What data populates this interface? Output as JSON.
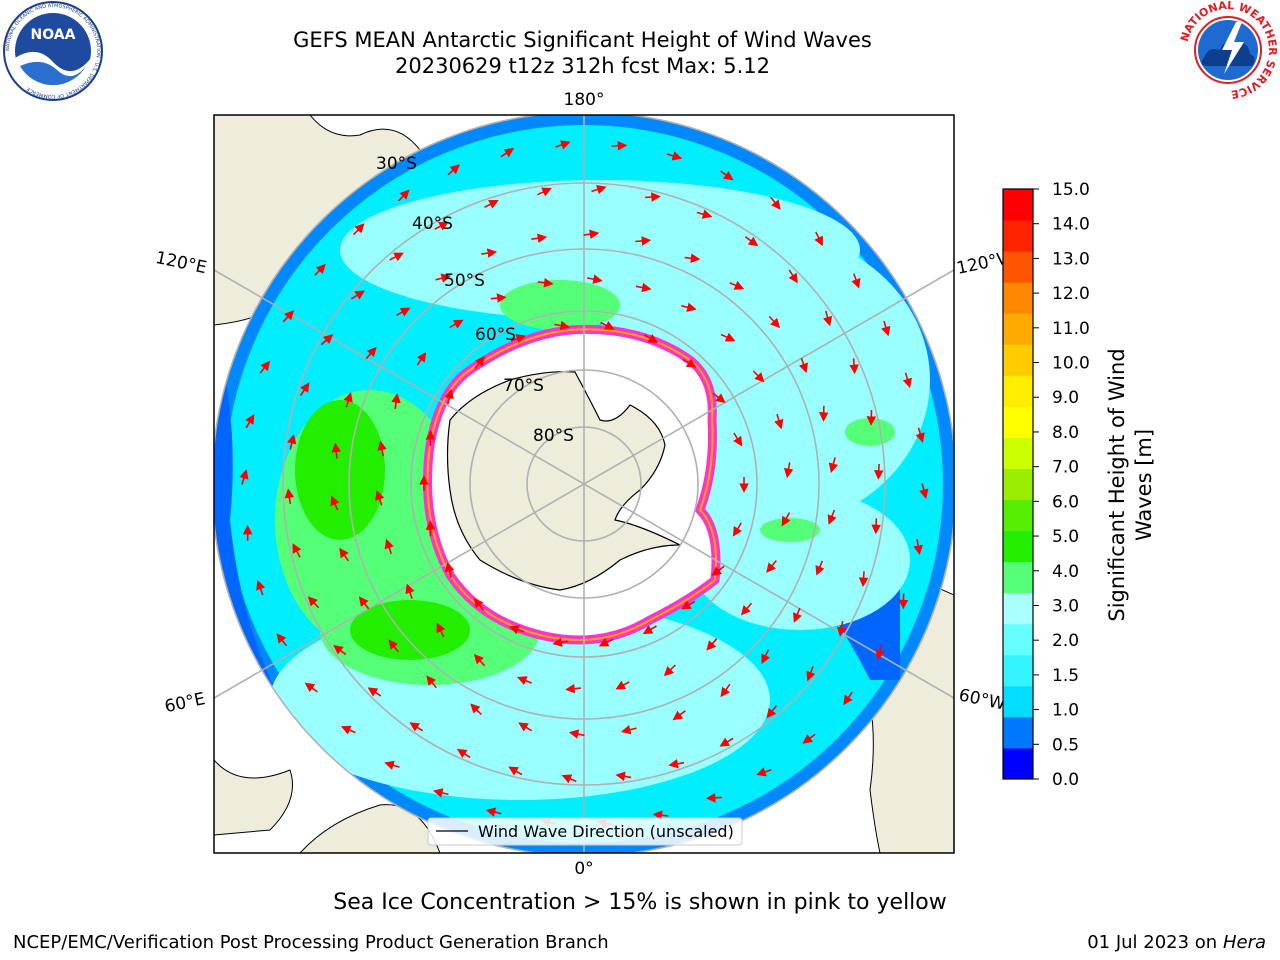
{
  "header": {
    "title_line1": "GEFS MEAN Antarctic Significant Height of Wind Waves",
    "title_line2": "20230629 t12z 312h fcst   Max: 5.12"
  },
  "logos": {
    "noaa_text": "NOAA",
    "noaa_ring_text": "NATIONAL OCEANIC AND ATMOSPHERIC ADMINISTRATION · U.S. DEPARTMENT OF COMMERCE",
    "nws_ring_text": "NATIONAL WEATHER SERVICE"
  },
  "map": {
    "longitude_labels": {
      "top": "180°",
      "bottom": "0°",
      "upper_left": "120°E",
      "upper_right": "120°W",
      "lower_left": "60°E",
      "lower_right": "60°W"
    },
    "latitude_labels": [
      "30°S",
      "40°S",
      "50°S",
      "60°S",
      "70°S",
      "80°S"
    ],
    "legend_label": "Wind Wave Direction (unscaled)",
    "colors": {
      "land": "#eeeddb",
      "ice": "#ffffff",
      "ice_edge": "#ff33cc",
      "arrow": "#ff0000",
      "grid": "#b0b0b0"
    }
  },
  "colorbar": {
    "label_line1": "Significant Height of Wind",
    "label_line2": "Waves [m]",
    "ticks": [
      "0.0",
      "0.5",
      "1.0",
      "1.5",
      "2.0",
      "3.0",
      "4.0",
      "5.0",
      "6.0",
      "7.0",
      "8.0",
      "9.0",
      "10.0",
      "11.0",
      "12.0",
      "13.0",
      "14.0",
      "15.0"
    ],
    "colors": [
      "#0000ff",
      "#0077ff",
      "#00ddff",
      "#33f5ff",
      "#66ffff",
      "#aaffff",
      "#55ff77",
      "#22ee00",
      "#55ee00",
      "#99ee00",
      "#ccff00",
      "#ffff00",
      "#ffee00",
      "#ffcc00",
      "#ffaa00",
      "#ff8800",
      "#ff5500",
      "#ff2200",
      "#ff0000"
    ]
  },
  "caption": "Sea Ice Concentration > 15% is shown in pink to yellow",
  "footer": {
    "left": "NCEP/EMC/Verification Post Processing Product Generation Branch",
    "right_prefix": "01 Jul 2023 on ",
    "right_italic": "Hera"
  }
}
